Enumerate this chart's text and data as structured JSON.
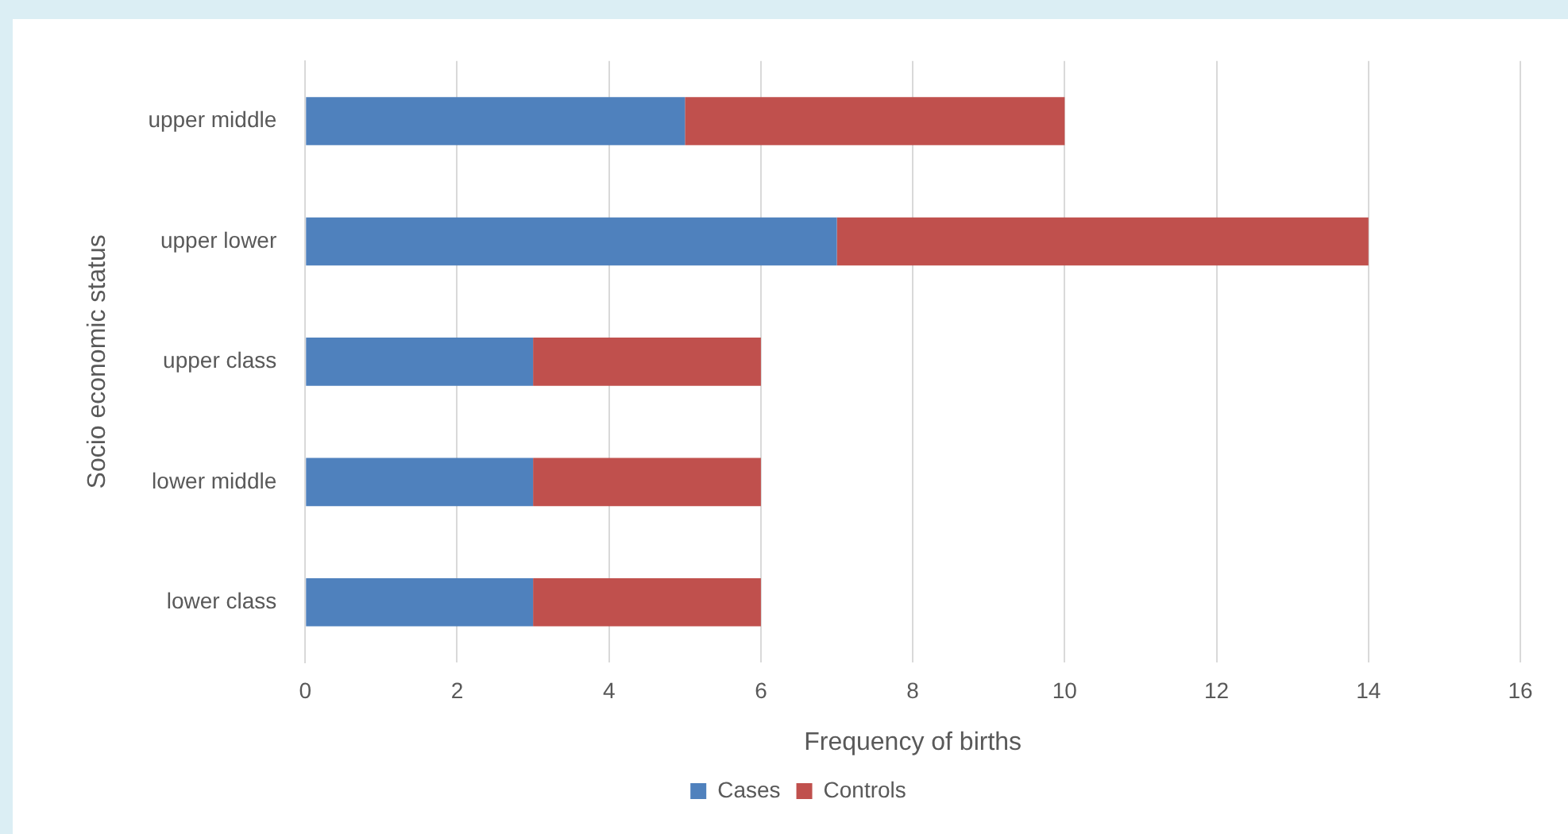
{
  "chart_data": {
    "type": "bar",
    "orientation": "horizontal",
    "stacked": true,
    "xlabel": "Frequency of births",
    "ylabel": "Socio economic status",
    "categories": [
      "upper middle",
      "upper lower",
      "upper class",
      "lower middle",
      "lower class"
    ],
    "series": [
      {
        "name": "Cases",
        "color": "#4f81bd",
        "values": [
          5,
          7,
          3,
          3,
          3
        ]
      },
      {
        "name": "Controls",
        "color": "#c0504d",
        "values": [
          5,
          7,
          3,
          3,
          3
        ]
      }
    ],
    "xlim": [
      0,
      16
    ],
    "xticks": [
      0,
      2,
      4,
      6,
      8,
      10,
      12,
      14,
      16
    ],
    "grid": "x",
    "legend": "bottom"
  }
}
